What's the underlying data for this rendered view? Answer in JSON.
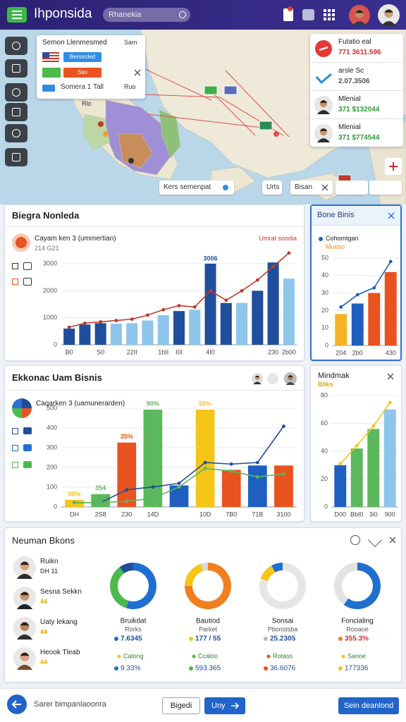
{
  "header": {
    "title": "Ihponsida",
    "search": "Rhanekia"
  },
  "map": {
    "popup": {
      "title": "Semon Llenmesmed",
      "tag": "Sam",
      "button1": "Berssrded",
      "button2": "Sso",
      "row": "Somera 1 Tall",
      "row_value": "Ruo"
    },
    "label": "Rlo",
    "search": "Kers semenpat",
    "chip1": "Urts",
    "chip2": "Bisan",
    "list": [
      {
        "title": "Futatio eal",
        "value": "771 3611.596"
      },
      {
        "title": "arsle Sc",
        "value": "2.07.3506"
      },
      {
        "title": "Mlenial",
        "value": "371 $132044"
      },
      {
        "title": "Mlenial",
        "value": "371 $774544"
      }
    ]
  },
  "chart_data": [
    {
      "type": "bar",
      "title": "Biegra Nonleda",
      "subtitle": "Cayam ken 3 (ummertian)",
      "note": "214 G21",
      "annotation": "Umrat soodia",
      "categories": [
        "B0",
        null,
        "S0",
        null,
        "22II",
        null,
        "1bII",
        "I0I",
        null,
        "4I0",
        null,
        null,
        null,
        "230",
        "2b00"
      ],
      "series": [
        {
          "type": "bar",
          "colors": [
            "#1f4e9c",
            "#1f4e9c",
            "#1f4e9c",
            "#8ec5ea",
            "#8ec5ea",
            "#8ec5ea",
            "#8ec5ea",
            "#1f4e9c",
            "#8ec5ea",
            "#1f4e9c",
            "#1f4e9c",
            "#8ec5ea",
            "#1f4e9c",
            "#1f4e9c",
            "#8ec5ea"
          ],
          "values": [
            600,
            750,
            800,
            780,
            800,
            900,
            1100,
            1250,
            1300,
            3006,
            1550,
            1550,
            2000,
            3050,
            2450
          ],
          "value_labels": [
            null,
            null,
            null,
            null,
            null,
            null,
            null,
            null,
            null,
            "3006",
            null,
            null,
            null,
            null,
            null
          ]
        },
        {
          "type": "line",
          "color": "#c0392b",
          "values": [
            650,
            800,
            850,
            900,
            950,
            1100,
            1300,
            1450,
            1400,
            2000,
            1650,
            2000,
            2400,
            2900,
            3400
          ]
        }
      ],
      "ylim": [
        0,
        3500
      ],
      "yticks": [
        0,
        1000,
        2000,
        3000
      ],
      "grid": true
    },
    {
      "type": "bar",
      "title": "Bone Binis",
      "subtitle": "Mueso",
      "categories": [
        "204",
        "2b0",
        null,
        "430"
      ],
      "series": [
        {
          "type": "bar",
          "colors": [
            "#f5b323",
            "#1f5fbf",
            "#e8531f",
            "#e8531f"
          ],
          "values": [
            18,
            24,
            30,
            42
          ]
        },
        {
          "type": "line",
          "name": "Cohomtgan",
          "color": "#1f5fbf",
          "values": [
            22,
            29,
            33,
            48
          ]
        }
      ],
      "ylim": [
        0,
        50
      ],
      "yticks": [
        0,
        10,
        20,
        30,
        40,
        50
      ],
      "grid": true
    },
    {
      "type": "bar",
      "title": "Ekkonac Uam Bisnis",
      "subtitle": "Caqarken 3 (uamunerarden)",
      "categories": [
        "DH",
        "2S8",
        "230",
        "14D",
        null,
        "10D",
        "7B0",
        "71B",
        "3100"
      ],
      "series": [
        {
          "type": "bar",
          "colors": [
            "#f5c518",
            "#5cb85c",
            "#e8531f",
            "#5cb85c",
            "#1f5fbf",
            "#f5c518",
            "#e8531f",
            "#1f5fbf",
            "#e8531f"
          ],
          "values": [
            36,
            65,
            326,
            493,
            109,
            493,
            188,
            210,
            210
          ]
        },
        {
          "type": "line",
          "color": "#1f4e9c",
          "values": [
            22,
            22,
            87,
            101,
            120,
            225,
            217,
            225,
            409
          ]
        },
        {
          "type": "line",
          "color": "#5cb85c",
          "values": [
            22,
            22,
            29,
            43,
            101,
            196,
            181,
            152,
            167
          ]
        }
      ],
      "ylim": [
        0,
        500
      ],
      "yticks": [
        0,
        100,
        200,
        300,
        400,
        500
      ],
      "annotations": [
        "50%",
        "354",
        "35%",
        "90%",
        "50%"
      ],
      "grid": true
    },
    {
      "type": "bar",
      "title": "Mindmak",
      "subtitle": "Bliks",
      "categories": [
        "D00",
        "BbI0",
        "3i0",
        "900"
      ],
      "series": [
        {
          "type": "bar",
          "colors": [
            "#1f5fbf",
            "#5cb85c",
            "#5cb85c",
            "#8ec5ea"
          ],
          "values": [
            30,
            42,
            56,
            70
          ]
        },
        {
          "type": "line",
          "color": "#f5c518",
          "values": [
            31,
            44,
            58,
            75
          ]
        }
      ],
      "ylim": [
        0,
        80
      ],
      "yticks": [
        0,
        20,
        40,
        60,
        80
      ],
      "grid": true
    },
    {
      "type": "donut",
      "values": [
        55,
        35,
        10
      ],
      "colors": [
        "#1f6fd0",
        "#4cb94c",
        "#1f4e9c"
      ]
    },
    {
      "type": "donut",
      "values": [
        75,
        20,
        5
      ],
      "colors": [
        "#f07f1f",
        "#f5c518",
        "#d8d8d8"
      ]
    },
    {
      "type": "donut",
      "values": [
        80,
        12,
        8
      ],
      "colors": [
        "#e6e6e6",
        "#f5c518",
        "#1f6fd0"
      ]
    },
    {
      "type": "donut",
      "values": [
        60,
        40
      ],
      "colors": [
        "#1f6fd0",
        "#e2e2e2"
      ]
    }
  ],
  "team": {
    "title": "Neuman Bkons",
    "people": [
      {
        "name": "Ruikn",
        "meta": "DH 11"
      },
      {
        "name": "Sesna Sekkn",
        "meta": "44"
      },
      {
        "name": "Uaty lekang",
        "meta": "44"
      },
      {
        "name": "Heook Tleab",
        "meta": "44"
      }
    ],
    "donuts": [
      {
        "name": "Bruikdat",
        "sub": "Rorks",
        "stat": "7.6345",
        "tag": "Calong",
        "tag_value": "9.33%"
      },
      {
        "name": "Bautiod",
        "sub": "Parket",
        "stat": "177 / 55",
        "tag": "Ccaloo",
        "tag_value": "593.365"
      },
      {
        "name": "Sonsai",
        "sub": "Pbonstsba",
        "stat": "25.2305",
        "tag": "Rotass",
        "tag_value": "36.6076"
      },
      {
        "name": "Foncialing",
        "sub": "Rooaoe",
        "stat": "355.3%",
        "tag": "Sanoe",
        "tag_value": "177336"
      }
    ]
  },
  "footer": {
    "back": "Sarer bimpanlaoonra",
    "button1": "Bigedi",
    "button2": "Uny",
    "button3": "Sein deanlond"
  }
}
